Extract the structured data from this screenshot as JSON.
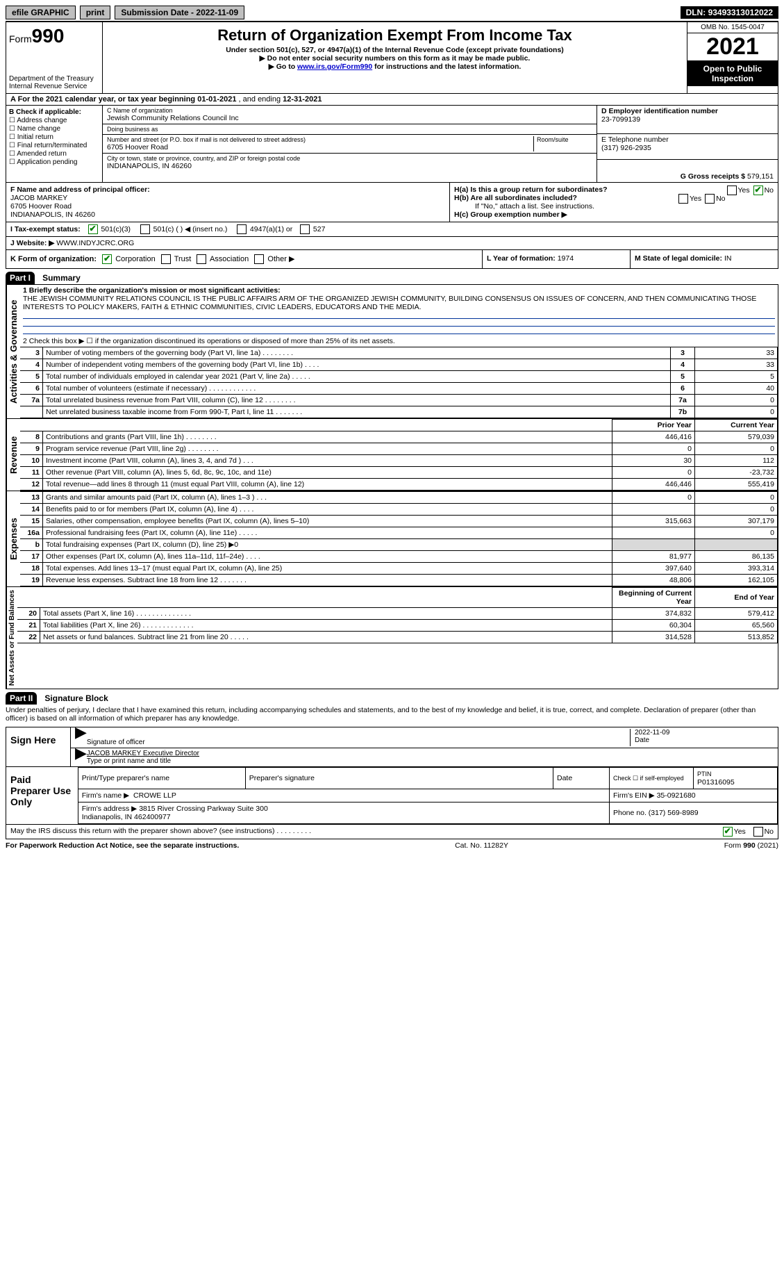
{
  "topbar": {
    "efile": "efile GRAPHIC",
    "print": "print",
    "submission_label": "Submission Date - ",
    "submission_date": "2022-11-09",
    "dln_label": "DLN: ",
    "dln": "93493313012022"
  },
  "header": {
    "form_prefix": "Form",
    "form_number": "990",
    "dept": "Department of the Treasury",
    "irs": "Internal Revenue Service",
    "title": "Return of Organization Exempt From Income Tax",
    "sub1": "Under section 501(c), 527, or 4947(a)(1) of the Internal Revenue Code (except private foundations)",
    "sub2": "▶ Do not enter social security numbers on this form as it may be made public.",
    "sub3_pre": "▶ Go to ",
    "sub3_link": "www.irs.gov/Form990",
    "sub3_post": " for instructions and the latest information.",
    "omb": "OMB No. 1545-0047",
    "year": "2021",
    "open": "Open to Public Inspection"
  },
  "rowA": {
    "text_pre": "A For the 2021 calendar year, or tax year beginning ",
    "begin": "01-01-2021",
    "mid": " , and ending ",
    "end": "12-31-2021"
  },
  "colB": {
    "title": "B Check if applicable:",
    "items": [
      "Address change",
      "Name change",
      "Initial return",
      "Final return/terminated",
      "Amended return",
      "Application pending"
    ]
  },
  "colC": {
    "c_label": "C Name of organization",
    "c_name": "Jewish Community Relations Council Inc",
    "dba_label": "Doing business as",
    "dba": "",
    "addr_label": "Number and street (or P.O. box if mail is not delivered to street address)",
    "room_label": "Room/suite",
    "addr": "6705 Hoover Road",
    "city_label": "City or town, state or province, country, and ZIP or foreign postal code",
    "city": "INDIANAPOLIS, IN  46260"
  },
  "colD": {
    "d_label": "D Employer identification number",
    "ein": "23-7099139",
    "e_label": "E Telephone number",
    "phone": "(317) 926-2935",
    "g_label": "G Gross receipts $ ",
    "g_val": "579,151"
  },
  "rowF": {
    "f_label": "F  Name and address of principal officer:",
    "name": "JACOB MARKEY",
    "addr1": "6705 Hoover Road",
    "addr2": "INDIANAPOLIS, IN  46260",
    "ha": "H(a)  Is this a group return for subordinates?",
    "hb": "H(b)  Are all subordinates included?",
    "hb_note": "If \"No,\" attach a list. See instructions.",
    "hc": "H(c)  Group exemption number ▶",
    "yes": "Yes",
    "no": "No"
  },
  "rowI": {
    "label": "I   Tax-exempt status:",
    "o1": "501(c)(3)",
    "o2": "501(c) (   ) ◀ (insert no.)",
    "o3": "4947(a)(1) or",
    "o4": "527"
  },
  "rowJ": {
    "label": "J   Website: ▶ ",
    "url": "WWW.INDYJCRC.ORG"
  },
  "rowK": {
    "k": "K Form of organization:",
    "opts": [
      "Corporation",
      "Trust",
      "Association",
      "Other ▶"
    ],
    "l": "L Year of formation: ",
    "l_val": "1974",
    "m": "M State of legal domicile: ",
    "m_val": "IN"
  },
  "part1": {
    "part": "Part I",
    "title": "Summary",
    "q1_label": "1  Briefly describe the organization's mission or most significant activities:",
    "q1_text": "THE JEWISH COMMUNITY RELATIONS COUNCIL IS THE PUBLIC AFFAIRS ARM OF THE ORGANIZED JEWISH COMMUNITY, BUILDING CONSENSUS ON ISSUES OF CONCERN, AND THEN COMMUNICATING THOSE INTERESTS TO POLICY MAKERS, FAITH & ETHNIC COMMUNITIES, CIVIC LEADERS, EDUCATORS AND THE MEDIA.",
    "q2": "2   Check this box ▶ ☐  if the organization discontinued its operations or disposed of more than 25% of its net assets.",
    "rows": [
      {
        "n": "3",
        "t": "Number of voting members of the governing body (Part VI, line 1a)   .    .    .    .    .    .    .    .",
        "b": "3",
        "v": "33"
      },
      {
        "n": "4",
        "t": "Number of independent voting members of the governing body (Part VI, line 1b)    .    .    .    .",
        "b": "4",
        "v": "33"
      },
      {
        "n": "5",
        "t": "Total number of individuals employed in calendar year 2021 (Part V, line 2a)   .    .    .    .    .",
        "b": "5",
        "v": "5"
      },
      {
        "n": "6",
        "t": "Total number of volunteers (estimate if necessary)    .    .    .    .    .    .    .    .    .    .    .    .",
        "b": "6",
        "v": "40"
      },
      {
        "n": "7a",
        "t": "Total unrelated business revenue from Part VIII, column (C), line 12   .    .    .    .    .    .    .    .",
        "b": "7a",
        "v": "0"
      },
      {
        "n": "",
        "t": "Net unrelated business taxable income from Form 990-T, Part I, line 11  .    .    .    .    .    .    .",
        "b": "7b",
        "v": "0"
      }
    ],
    "vlabel1": "Activities & Governance"
  },
  "revenue": {
    "vlabel": "Revenue",
    "th_prior": "Prior Year",
    "th_curr": "Current Year",
    "rows": [
      {
        "n": "8",
        "t": "Contributions and grants (Part VIII, line 1h)   .    .    .    .    .    .    .    .",
        "p": "446,416",
        "c": "579,039"
      },
      {
        "n": "9",
        "t": "Program service revenue (Part VIII, line 2g)    .    .    .    .    .    .    .    .",
        "p": "0",
        "c": "0"
      },
      {
        "n": "10",
        "t": "Investment income (Part VIII, column (A), lines 3, 4, and 7d )   .    .    .",
        "p": "30",
        "c": "112"
      },
      {
        "n": "11",
        "t": "Other revenue (Part VIII, column (A), lines 5, 6d, 8c, 9c, 10c, and 11e)",
        "p": "0",
        "c": "-23,732"
      },
      {
        "n": "12",
        "t": "Total revenue—add lines 8 through 11 (must equal Part VIII, column (A), line 12)",
        "p": "446,446",
        "c": "555,419"
      }
    ]
  },
  "expenses": {
    "vlabel": "Expenses",
    "rows": [
      {
        "n": "13",
        "t": "Grants and similar amounts paid (Part IX, column (A), lines 1–3 )   .    .    .",
        "p": "0",
        "c": "0"
      },
      {
        "n": "14",
        "t": "Benefits paid to or for members (Part IX, column (A), line 4)   .    .    .    .",
        "p": "",
        "c": "0"
      },
      {
        "n": "15",
        "t": "Salaries, other compensation, employee benefits (Part IX, column (A), lines 5–10)",
        "p": "315,663",
        "c": "307,179"
      },
      {
        "n": "16a",
        "t": "Professional fundraising fees (Part IX, column (A), line 11e)  .    .    .    .    .",
        "p": "",
        "c": "0"
      },
      {
        "n": "b",
        "t": "Total fundraising expenses (Part IX, column (D), line 25) ▶0",
        "p": "shade",
        "c": "shade"
      },
      {
        "n": "17",
        "t": "Other expenses (Part IX, column (A), lines 11a–11d, 11f–24e)   .    .    .    .",
        "p": "81,977",
        "c": "86,135"
      },
      {
        "n": "18",
        "t": "Total expenses. Add lines 13–17 (must equal Part IX, column (A), line 25)",
        "p": "397,640",
        "c": "393,314"
      },
      {
        "n": "19",
        "t": "Revenue less expenses. Subtract line 18 from line 12  .    .    .    .    .    .    .",
        "p": "48,806",
        "c": "162,105"
      }
    ]
  },
  "netassets": {
    "vlabel": "Net Assets or Fund Balances",
    "th_begin": "Beginning of Current Year",
    "th_end": "End of Year",
    "rows": [
      {
        "n": "20",
        "t": "Total assets (Part X, line 16)  .    .    .    .    .    .    .    .    .    .    .    .    .    .",
        "p": "374,832",
        "c": "579,412"
      },
      {
        "n": "21",
        "t": "Total liabilities (Part X, line 26)   .    .    .    .    .    .    .    .    .    .    .    .    .",
        "p": "60,304",
        "c": "65,560"
      },
      {
        "n": "22",
        "t": "Net assets or fund balances. Subtract line 21 from line 20   .    .    .    .    .",
        "p": "314,528",
        "c": "513,852"
      }
    ]
  },
  "part2": {
    "part": "Part II",
    "title": "Signature Block",
    "decl": "Under penalties of perjury, I declare that I have examined this return, including accompanying schedules and statements, and to the best of my knowledge and belief, it is true, correct, and complete. Declaration of preparer (other than officer) is based on all information of which preparer has any knowledge."
  },
  "sign": {
    "label": "Sign Here",
    "sig_of_officer": "Signature of officer",
    "date": "2022-11-09",
    "date_lbl": "Date",
    "name": "JACOB MARKEY Executive Director",
    "name_lbl": "Type or print name and title"
  },
  "preparer": {
    "label": "Paid Preparer Use Only",
    "h1": "Print/Type preparer's name",
    "h2": "Preparer's signature",
    "h3": "Date",
    "h4_a": "Check ☐ if self-employed",
    "h4_b": "PTIN",
    "ptin": "P01316095",
    "firm_lbl": "Firm's name    ▶",
    "firm": "CROWE LLP",
    "ein_lbl": "Firm's EIN ▶ ",
    "ein": "35-0921680",
    "addr_lbl": "Firm's address ▶",
    "addr": "3815 River Crossing Parkway Suite 300\nIndianapolis, IN  462400977",
    "phone_lbl": "Phone no. ",
    "phone": "(317) 569-8989"
  },
  "may": {
    "q": "May the IRS discuss this return with the preparer shown above? (see instructions)   .    .    .    .    .    .    .    .    .",
    "yes": "Yes",
    "no": "No"
  },
  "footer": {
    "left": "For Paperwork Reduction Act Notice, see the separate instructions.",
    "mid": "Cat. No. 11282Y",
    "right": "Form 990 (2021)"
  },
  "style": {
    "link_color": "#0000cc",
    "green": "#008000"
  }
}
